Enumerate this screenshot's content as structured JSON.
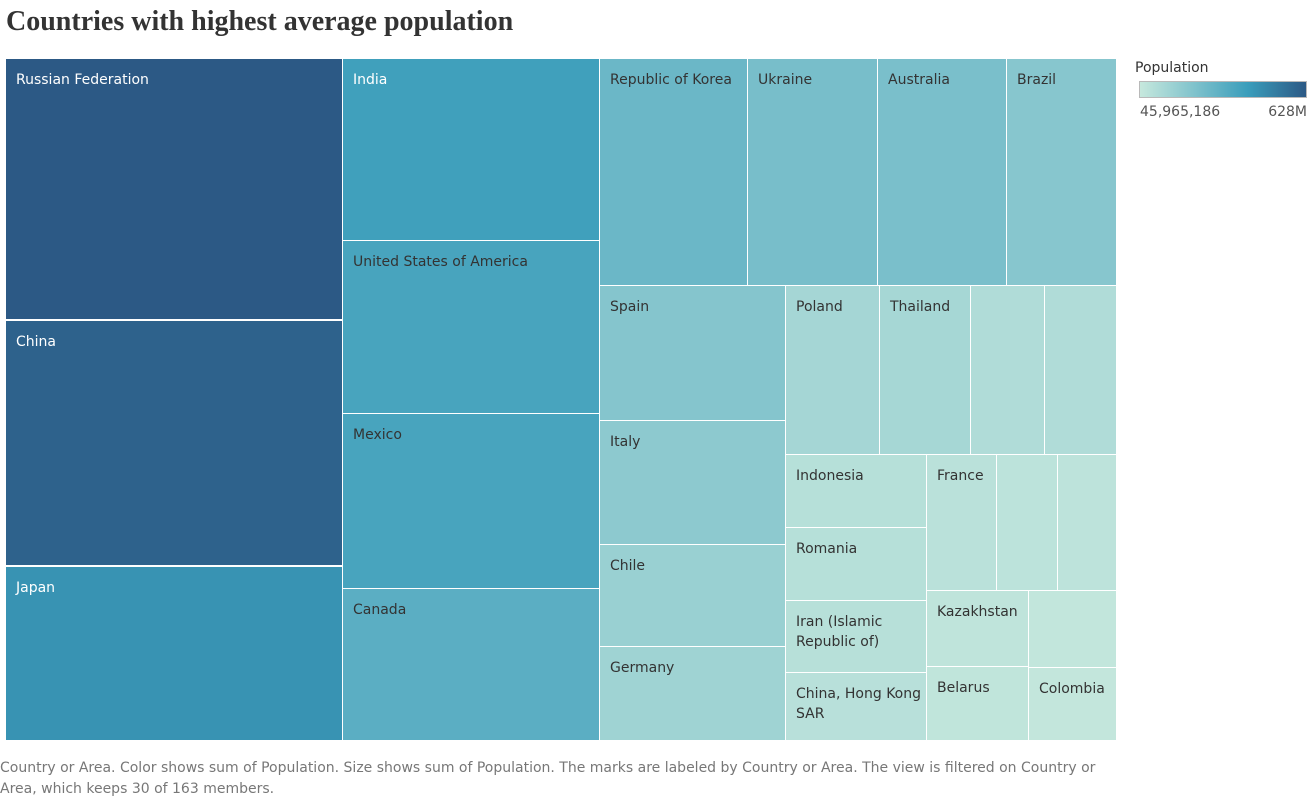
{
  "title": "Countries with highest average population",
  "legend": {
    "title": "Population",
    "min_label": "45,965,186",
    "max_label": "628M",
    "min_color": "#c6e8dd",
    "mid_color": "#3a9dbb",
    "max_color": "#2c5985"
  },
  "caption": "Country or Area.  Color shows sum of Population.  Size shows sum of Population.  The marks are labeled by Country or Area. The view is filtered on Country or Area, which keeps 30 of 163 members.",
  "chart_data": {
    "type": "treemap",
    "measure": "sum of Population",
    "color_range": [
      45965186,
      628000000
    ],
    "items": [
      {
        "label": "Russian Federation",
        "value": 628000000
      },
      {
        "label": "China",
        "value": 595000000
      },
      {
        "label": "Japan",
        "value": 420000000
      },
      {
        "label": "India",
        "value": 370000000
      },
      {
        "label": "United States of America",
        "value": 350000000
      },
      {
        "label": "Mexico",
        "value": 350000000
      },
      {
        "label": "Canada",
        "value": 305000000
      },
      {
        "label": "Republic of Korea",
        "value": 266000000
      },
      {
        "label": "Ukraine",
        "value": 234000000
      },
      {
        "label": "Australia",
        "value": 229000000
      },
      {
        "label": "Brazil",
        "value": 198000000
      },
      {
        "label": "Spain",
        "value": 202000000
      },
      {
        "label": "Italy",
        "value": 184000000
      },
      {
        "label": "Chile",
        "value": 155000000
      },
      {
        "label": "Germany",
        "value": 141000000
      },
      {
        "label": "Poland",
        "value": 125000000
      },
      {
        "label": "Thailand",
        "value": 123000000
      },
      {
        "label": "",
        "value": 99000000
      },
      {
        "label": "",
        "value": 99000000
      },
      {
        "label": "Indonesia",
        "value": 84000000
      },
      {
        "label": "Romania",
        "value": 84000000
      },
      {
        "label": "Iran (Islamic Republic of)",
        "value": 82000000
      },
      {
        "label": "China, Hong Kong SAR",
        "value": 80000000
      },
      {
        "label": "France",
        "value": 76000000
      },
      {
        "label": "",
        "value": 70000000
      },
      {
        "label": "",
        "value": 68000000
      },
      {
        "label": "Kazakhstan",
        "value": 63000000
      },
      {
        "label": "",
        "value": 55000000
      },
      {
        "label": "Belarus",
        "value": 61000000
      },
      {
        "label": "Colombia",
        "value": 54000000
      }
    ]
  }
}
